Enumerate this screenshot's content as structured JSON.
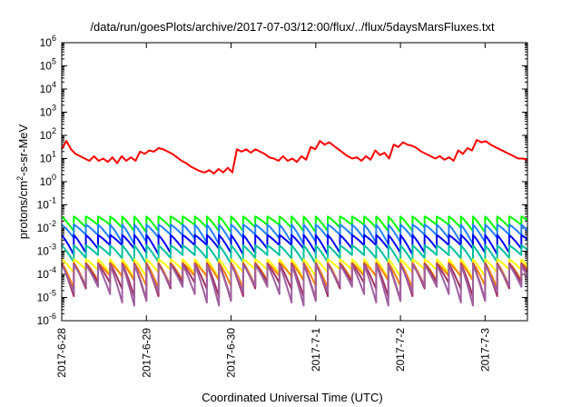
{
  "chart_data": {
    "type": "line",
    "title": "/data/run/goesPlots/archive/2017-07-03/12:00/flux/../flux/5daysMarsFluxes.txt",
    "xlabel": "Coordinated Universal Time (UTC)",
    "ylabel": {
      "base": "protons/cm",
      "sup": "2",
      "rest": "-s-sr-MeV"
    },
    "yscale": "log",
    "ylim_exp": [
      -6,
      6
    ],
    "ytick_exps": [
      -6,
      -5,
      -4,
      -3,
      -2,
      -1,
      0,
      1,
      2,
      3,
      4,
      5,
      6
    ],
    "xlim_days": [
      0,
      5.5
    ],
    "xtick_labels": [
      "2017-6-28",
      "2017-6-29",
      "2017-6-30",
      "2017-7-1",
      "2017-7-2",
      "2017-7-3"
    ],
    "grid": false,
    "legend": "none",
    "series": [
      {
        "color": "#ff0000",
        "log_values": [
          1.4,
          1.76,
          1.4,
          1.2,
          1.1,
          1.0,
          0.9,
          1.1,
          0.9,
          1.0,
          0.85,
          1.05,
          0.8,
          1.1,
          0.9,
          1.05,
          0.9,
          1.3,
          1.2,
          1.35,
          1.3,
          1.45,
          1.4,
          1.3,
          1.2,
          1.05,
          0.9,
          0.8,
          0.65,
          0.55,
          0.45,
          0.4,
          0.5,
          0.35,
          0.55,
          0.4,
          0.6,
          0.4,
          1.4,
          1.3,
          1.4,
          1.25,
          1.4,
          1.3,
          1.2,
          1.05,
          1.0,
          0.9,
          1.1,
          0.9,
          1.0,
          0.85,
          1.1,
          0.95,
          1.5,
          1.4,
          1.76,
          1.6,
          1.7,
          1.55,
          1.4,
          1.25,
          1.1,
          1.0,
          1.05,
          0.9,
          1.1,
          0.95,
          1.35,
          1.15,
          1.25,
          1.0,
          1.6,
          1.5,
          1.7,
          1.6,
          1.55,
          1.45,
          1.3,
          1.2,
          1.1,
          1.0,
          1.1,
          0.95,
          1.05,
          0.9,
          1.35,
          1.2,
          1.45,
          1.35,
          1.8,
          1.7,
          1.75,
          1.6,
          1.5,
          1.4,
          1.3,
          1.2,
          1.1,
          1.0,
          1.0,
          0.95
        ]
      },
      {
        "color": "#00ff00",
        "peak": -1.5,
        "trough": -2.2
      },
      {
        "color": "#2080ff",
        "peak": -1.85,
        "trough": -2.7
      },
      {
        "color": "#0000ff",
        "peak": -2.3,
        "trough": -3.15
      },
      {
        "color": "#00c0a0",
        "peak": -2.75,
        "trough": -3.55
      },
      {
        "color": "#ffff00",
        "peak": -3.35,
        "trough": -4.2
      },
      {
        "color": "#ff8000",
        "peak": -3.5,
        "trough": -4.6
      },
      {
        "color": "#a03060",
        "peak": -3.55,
        "trough": -5.1
      },
      {
        "color": "#a060a0",
        "peak": -3.6,
        "trough": -5.35
      }
    ]
  }
}
